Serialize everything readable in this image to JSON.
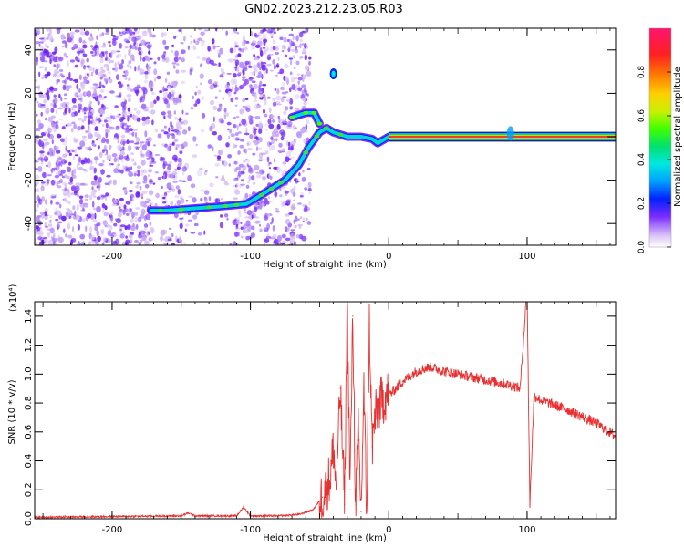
{
  "title": "GN02.2023.212.23.05.R03",
  "chart_data": [
    {
      "type": "heatmap",
      "xlabel": "Height of straight line (km)",
      "ylabel": "Frequency (Hz)",
      "xlim": [
        -256,
        164
      ],
      "ylim": [
        -50,
        50
      ],
      "x_ticks": [
        -200,
        -100,
        0,
        100
      ],
      "y_ticks": [
        -40,
        -20,
        0,
        20,
        40
      ],
      "colorbar": {
        "label": "Normalized spectral amplitude",
        "range": [
          0.0,
          1.0
        ],
        "ticks": [
          "0.0",
          "0.2",
          "0.4",
          "0.6",
          "0.8"
        ],
        "colors": [
          "#dcc7f5",
          "#7a2bff",
          "#0022ff",
          "#00a0ff",
          "#00e8e0",
          "#00e070",
          "#40ff00",
          "#c8f000",
          "#ffd000",
          "#ff8000",
          "#ff2020",
          "#ff1470"
        ]
      },
      "noise_region": [
        -256,
        -65
      ],
      "ridge": [
        {
          "x": -172,
          "y": -34
        },
        {
          "x": -160,
          "y": -34
        },
        {
          "x": -140,
          "y": -33
        },
        {
          "x": -120,
          "y": -32
        },
        {
          "x": -103,
          "y": -31
        },
        {
          "x": -95,
          "y": -28
        },
        {
          "x": -85,
          "y": -24
        },
        {
          "x": -75,
          "y": -20
        },
        {
          "x": -65,
          "y": -13
        },
        {
          "x": -58,
          "y": -5
        },
        {
          "x": -50,
          "y": 2
        },
        {
          "x": -45,
          "y": 4
        },
        {
          "x": -40,
          "y": 2
        },
        {
          "x": -30,
          "y": 0
        },
        {
          "x": -20,
          "y": 0
        },
        {
          "x": -12,
          "y": -1
        },
        {
          "x": -8,
          "y": -3
        },
        {
          "x": 0,
          "y": 0
        },
        {
          "x": 164,
          "y": 0
        }
      ],
      "upper_branch": [
        {
          "x": -70,
          "y": 9
        },
        {
          "x": -60,
          "y": 11
        },
        {
          "x": -54,
          "y": 11
        },
        {
          "x": -50,
          "y": 6
        }
      ],
      "isolated_feature": {
        "x": -40,
        "y": 29
      }
    },
    {
      "type": "line",
      "xlabel": "Height of straight line (km)",
      "ylabel": "SNR (10 * v/v)",
      "y_multiplier": "(x10⁴)",
      "xlim": [
        -256,
        164
      ],
      "ylim": [
        0,
        1.5
      ],
      "x_ticks": [
        -200,
        -100,
        0,
        100
      ],
      "y_ticks": [
        "0.0",
        "0.2",
        "0.4",
        "0.6",
        "0.8",
        "1.0",
        "1.2",
        "1.4"
      ],
      "color": "#e83030",
      "series": [
        {
          "x": [
            -256,
            -150,
            -145,
            -140,
            -110,
            -105,
            -100,
            -80,
            -65,
            -55,
            -48,
            -42,
            -40,
            -38,
            -35,
            -32,
            -30,
            -28,
            -26,
            -24,
            -22,
            -20,
            -18,
            -16,
            -14,
            -12,
            -10,
            -6,
            -2,
            2,
            10,
            20,
            30,
            40,
            60,
            80,
            90,
            95,
            100,
            102,
            105,
            110,
            130,
            150,
            164
          ],
          "y": [
            0.01,
            0.02,
            0.04,
            0.02,
            0.02,
            0.08,
            0.02,
            0.02,
            0.03,
            0.06,
            0.15,
            0.3,
            0.5,
            0.2,
            0.9,
            0.1,
            1.5,
            0.2,
            1.4,
            0.1,
            0.6,
            0.05,
            0.9,
            0.05,
            1.35,
            0.5,
            0.7,
            0.8,
            0.85,
            0.87,
            0.95,
            1.02,
            1.05,
            1.02,
            0.98,
            0.94,
            0.92,
            0.9,
            1.6,
            0.1,
            0.85,
            0.82,
            0.75,
            0.66,
            0.57
          ]
        }
      ]
    }
  ]
}
